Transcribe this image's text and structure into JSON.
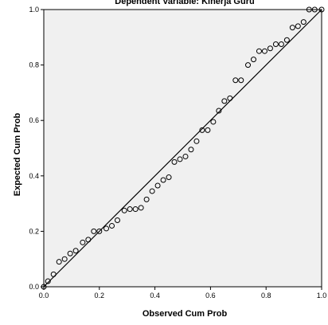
{
  "chart_data": {
    "type": "scatter",
    "title": "Dependent Variable: Kinerja Guru",
    "xlabel": "Observed Cum Prob",
    "ylabel": "Expected Cum Prob",
    "xlim": [
      0,
      1
    ],
    "ylim": [
      0,
      1
    ],
    "xticks": [
      "0.0",
      "0.2",
      "0.4",
      "0.6",
      "0.8",
      "1.0"
    ],
    "yticks": [
      "0.0",
      "0.2",
      "0.4",
      "0.6",
      "0.8",
      "1.0"
    ],
    "reference_line": [
      [
        0,
        0
      ],
      [
        1,
        1
      ]
    ],
    "grid": false,
    "plot_background": "#f0f0f0",
    "marker_color": "#000000",
    "series": [
      {
        "x": [
          0.0,
          0.015,
          0.035,
          0.055,
          0.075,
          0.095,
          0.115,
          0.14,
          0.16,
          0.18,
          0.2,
          0.225,
          0.245,
          0.265,
          0.29,
          0.31,
          0.33,
          0.35,
          0.37,
          0.39,
          0.41,
          0.43,
          0.45,
          0.47,
          0.49,
          0.51,
          0.53,
          0.55,
          0.57,
          0.59,
          0.61,
          0.63,
          0.65,
          0.67,
          0.69,
          0.71,
          0.735,
          0.755,
          0.775,
          0.795,
          0.815,
          0.835,
          0.855,
          0.875,
          0.895,
          0.915,
          0.935,
          0.955,
          0.975,
          1.0
        ],
        "y": [
          0.0,
          0.02,
          0.045,
          0.09,
          0.1,
          0.12,
          0.13,
          0.16,
          0.17,
          0.2,
          0.2,
          0.21,
          0.22,
          0.24,
          0.275,
          0.28,
          0.28,
          0.285,
          0.315,
          0.345,
          0.365,
          0.385,
          0.395,
          0.45,
          0.46,
          0.47,
          0.495,
          0.525,
          0.565,
          0.565,
          0.595,
          0.635,
          0.67,
          0.68,
          0.745,
          0.745,
          0.8,
          0.82,
          0.85,
          0.85,
          0.86,
          0.875,
          0.875,
          0.89,
          0.935,
          0.94,
          0.955,
          1.0,
          1.0,
          1.0
        ]
      }
    ]
  }
}
